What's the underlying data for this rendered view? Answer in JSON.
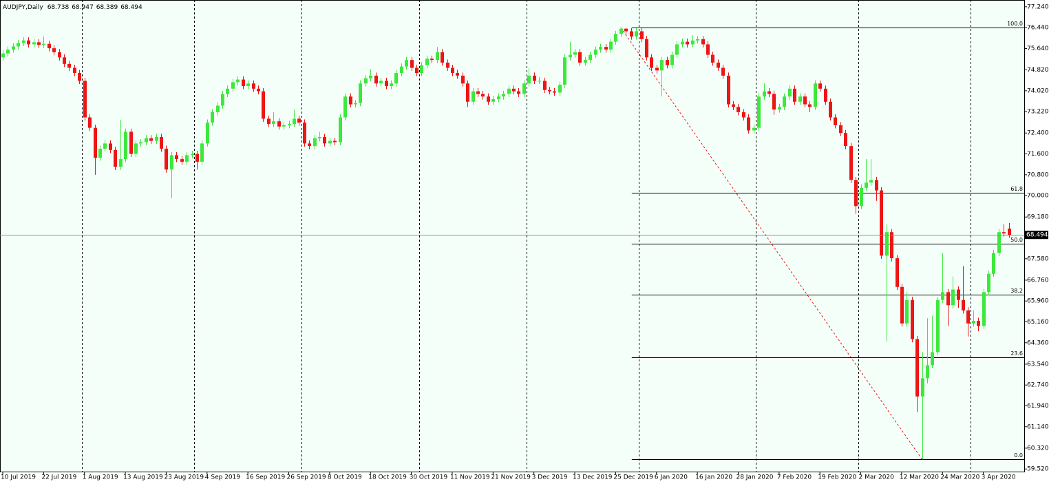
{
  "chart_data": {
    "type": "candlestick",
    "title": "AUDJPY,Daily",
    "header_ohlc": [
      68.738,
      68.947,
      68.389,
      68.494
    ],
    "up_color": "#3de83d",
    "down_color": "#ee1515",
    "background": "#f5fffa",
    "ylim": [
      59.42,
      77.5
    ],
    "yticks": [
      {
        "value": 77.24,
        "label": "77.240"
      },
      {
        "value": 76.44,
        "label": "76.440"
      },
      {
        "value": 75.64,
        "label": "75.640"
      },
      {
        "value": 74.82,
        "label": "74.820"
      },
      {
        "value": 74.02,
        "label": "74.020"
      },
      {
        "value": 73.22,
        "label": "73.220"
      },
      {
        "value": 72.4,
        "label": "72.400"
      },
      {
        "value": 71.6,
        "label": "71.600"
      },
      {
        "value": 70.8,
        "label": "70.800"
      },
      {
        "value": 70,
        "label": "70.000"
      },
      {
        "value": 69.18,
        "label": "69.180"
      },
      {
        "value": 67.58,
        "label": "67.580"
      },
      {
        "value": 66.76,
        "label": "66.760"
      },
      {
        "value": 65.96,
        "label": "65.960"
      },
      {
        "value": 65.16,
        "label": "65.160"
      },
      {
        "value": 64.36,
        "label": "64.360"
      },
      {
        "value": 63.54,
        "label": "63.540"
      },
      {
        "value": 62.74,
        "label": "62.740"
      },
      {
        "value": 61.94,
        "label": "61.940"
      },
      {
        "value": 61.14,
        "label": "61.140"
      },
      {
        "value": 60.32,
        "label": "60.320"
      },
      {
        "value": 59.52,
        "label": "59.520"
      }
    ],
    "last_price": 68.494,
    "fibo": {
      "high": 76.44,
      "low": 59.89,
      "color": "#000000",
      "trend_color": "#ee1515",
      "levels": [
        {
          "value": 100,
          "label": "100.0"
        },
        {
          "value": 61.8,
          "label": "61.8"
        },
        {
          "value": 50,
          "label": "50.0"
        },
        {
          "value": 38.2,
          "label": "38.2"
        },
        {
          "value": 23.6,
          "label": "23.6"
        },
        {
          "value": 0,
          "label": "0.0"
        }
      ]
    },
    "categories": [
      "10 Jul 2019",
      null,
      null,
      null,
      null,
      null,
      null,
      null,
      "22 Jul 2019",
      null,
      null,
      null,
      null,
      null,
      null,
      null,
      "1 Aug 2019",
      null,
      null,
      null,
      null,
      null,
      null,
      null,
      "13 Aug 2019",
      null,
      null,
      null,
      null,
      null,
      null,
      null,
      "23 Aug 2019",
      null,
      null,
      null,
      null,
      null,
      null,
      null,
      "4 Sep 2019",
      null,
      null,
      null,
      null,
      null,
      null,
      null,
      "16 Sep 2019",
      null,
      null,
      null,
      null,
      null,
      null,
      null,
      "26 Sep 2019",
      null,
      null,
      null,
      null,
      null,
      null,
      null,
      "8 Oct 2019",
      null,
      null,
      null,
      null,
      null,
      null,
      null,
      "18 Oct 2019",
      null,
      null,
      null,
      null,
      null,
      null,
      null,
      "30 Oct 2019",
      null,
      null,
      null,
      null,
      null,
      null,
      null,
      "11 Nov 2019",
      null,
      null,
      null,
      null,
      null,
      null,
      null,
      "21 Nov 2019",
      null,
      null,
      null,
      null,
      null,
      null,
      null,
      "3 Dec 2019",
      null,
      null,
      null,
      null,
      null,
      null,
      null,
      "13 Dec 2019",
      null,
      null,
      null,
      null,
      null,
      null,
      null,
      "25 Dec 2019",
      null,
      null,
      null,
      null,
      null,
      null,
      null,
      "6 Jan 2020",
      null,
      null,
      null,
      null,
      null,
      null,
      null,
      "16 Jan 2020",
      null,
      null,
      null,
      null,
      null,
      null,
      null,
      "28 Jan 2020",
      null,
      null,
      null,
      null,
      null,
      null,
      null,
      "7 Feb 2020",
      null,
      null,
      null,
      null,
      null,
      null,
      null,
      "19 Feb 2020",
      null,
      null,
      null,
      null,
      null,
      null,
      null,
      "2 Mar 2020",
      null,
      null,
      null,
      null,
      null,
      null,
      null,
      "12 Mar 2020",
      null,
      null,
      null,
      null,
      null,
      null,
      null,
      "24 Mar 2020",
      null,
      null,
      null,
      null,
      null,
      null,
      null,
      "3 Apr 2020",
      null,
      null,
      null,
      null,
      null
    ],
    "candles": [
      [
        75.3,
        75.57,
        75.18,
        75.45
      ],
      [
        75.45,
        75.72,
        75.33,
        75.6
      ],
      [
        75.6,
        75.84,
        75.48,
        75.72
      ],
      [
        75.72,
        75.97,
        75.6,
        75.85
      ],
      [
        75.85,
        76.07,
        75.73,
        75.95
      ],
      [
        75.95,
        76.07,
        75.68,
        75.8
      ],
      [
        75.8,
        76.0,
        75.68,
        75.88
      ],
      [
        75.88,
        76.0,
        75.66,
        75.78
      ],
      [
        75.78,
        76.1,
        75.66,
        75.82
      ],
      [
        75.82,
        75.94,
        75.53,
        75.65
      ],
      [
        75.65,
        75.77,
        75.38,
        75.5
      ],
      [
        75.5,
        75.62,
        75.18,
        75.3
      ],
      [
        75.3,
        75.42,
        74.93,
        75.05
      ],
      [
        75.05,
        75.17,
        74.78,
        74.9
      ],
      [
        74.9,
        75.02,
        74.58,
        74.7
      ],
      [
        74.7,
        74.82,
        74.28,
        74.4
      ],
      [
        74.4,
        74.52,
        72.88,
        73.0
      ],
      [
        73.0,
        73.12,
        72.48,
        72.6
      ],
      [
        72.6,
        72.72,
        70.8,
        71.45
      ],
      [
        71.45,
        71.92,
        71.33,
        71.8
      ],
      [
        71.8,
        72.12,
        71.68,
        72.0
      ],
      [
        72.0,
        72.12,
        71.63,
        71.75
      ],
      [
        71.75,
        71.87,
        70.98,
        71.1
      ],
      [
        71.1,
        72.9,
        70.98,
        71.4
      ],
      [
        71.4,
        72.57,
        71.28,
        72.45
      ],
      [
        72.45,
        72.57,
        71.48,
        71.6
      ],
      [
        71.6,
        72.12,
        71.48,
        72.0
      ],
      [
        72.0,
        72.17,
        71.88,
        72.05
      ],
      [
        72.05,
        72.32,
        71.93,
        72.2
      ],
      [
        72.2,
        72.32,
        71.98,
        72.1
      ],
      [
        72.1,
        72.37,
        71.98,
        72.25
      ],
      [
        72.25,
        72.37,
        71.68,
        71.8
      ],
      [
        71.8,
        71.92,
        70.88,
        71.0
      ],
      [
        71.0,
        71.67,
        69.9,
        71.55
      ],
      [
        71.55,
        71.67,
        71.28,
        71.4
      ],
      [
        71.4,
        71.52,
        71.18,
        71.3
      ],
      [
        71.3,
        71.67,
        71.18,
        71.55
      ],
      [
        71.55,
        71.72,
        71.43,
        71.6
      ],
      [
        71.6,
        71.72,
        71.0,
        71.3
      ],
      [
        71.3,
        72.12,
        71.18,
        72.0
      ],
      [
        72.0,
        72.92,
        71.88,
        72.8
      ],
      [
        72.8,
        73.32,
        72.68,
        73.2
      ],
      [
        73.2,
        73.57,
        73.08,
        73.45
      ],
      [
        73.45,
        74.02,
        73.33,
        73.9
      ],
      [
        73.9,
        74.22,
        73.78,
        74.1
      ],
      [
        74.1,
        74.47,
        73.98,
        74.35
      ],
      [
        74.35,
        74.57,
        74.23,
        74.45
      ],
      [
        74.45,
        74.57,
        74.08,
        74.2
      ],
      [
        74.2,
        74.42,
        74.08,
        74.3
      ],
      [
        74.3,
        74.42,
        73.98,
        74.1
      ],
      [
        74.1,
        74.22,
        73.88,
        74.0
      ],
      [
        74.0,
        74.12,
        72.83,
        72.95
      ],
      [
        72.95,
        73.07,
        72.63,
        72.75
      ],
      [
        72.75,
        73.2,
        72.63,
        72.85
      ],
      [
        72.85,
        72.97,
        72.53,
        72.65
      ],
      [
        72.65,
        72.82,
        72.53,
        72.7
      ],
      [
        72.7,
        72.87,
        72.58,
        72.75
      ],
      [
        72.75,
        73.3,
        72.63,
        72.95
      ],
      [
        72.95,
        73.07,
        72.68,
        72.8
      ],
      [
        72.8,
        72.92,
        71.88,
        72.0
      ],
      [
        72.0,
        72.12,
        71.78,
        71.9
      ],
      [
        71.9,
        72.32,
        71.78,
        72.2
      ],
      [
        72.2,
        72.45,
        72.08,
        72.25
      ],
      [
        72.25,
        72.37,
        71.88,
        72.0
      ],
      [
        72.0,
        72.22,
        71.88,
        72.1
      ],
      [
        72.1,
        72.22,
        71.93,
        72.05
      ],
      [
        72.05,
        73.12,
        71.93,
        73.0
      ],
      [
        73.0,
        73.92,
        72.88,
        73.8
      ],
      [
        73.8,
        73.92,
        73.38,
        73.5
      ],
      [
        73.5,
        73.67,
        73.38,
        73.55
      ],
      [
        73.55,
        74.42,
        73.43,
        74.3
      ],
      [
        74.3,
        74.62,
        74.18,
        74.5
      ],
      [
        74.5,
        74.85,
        74.38,
        74.6
      ],
      [
        74.6,
        74.72,
        74.18,
        74.3
      ],
      [
        74.3,
        74.52,
        74.18,
        74.4
      ],
      [
        74.4,
        74.52,
        74.08,
        74.2
      ],
      [
        74.2,
        74.42,
        74.08,
        74.3
      ],
      [
        74.3,
        74.82,
        74.18,
        74.7
      ],
      [
        74.7,
        75.07,
        74.58,
        74.95
      ],
      [
        74.95,
        75.32,
        74.83,
        75.2
      ],
      [
        75.2,
        75.32,
        74.78,
        74.9
      ],
      [
        74.9,
        75.02,
        74.58,
        74.7
      ],
      [
        74.7,
        75.12,
        74.58,
        75.0
      ],
      [
        75.0,
        75.37,
        74.88,
        75.25
      ],
      [
        75.25,
        75.37,
        75.08,
        75.2
      ],
      [
        75.2,
        75.7,
        75.08,
        75.5
      ],
      [
        75.5,
        75.62,
        74.98,
        75.1
      ],
      [
        75.1,
        75.22,
        74.78,
        74.9
      ],
      [
        74.9,
        75.02,
        74.58,
        74.7
      ],
      [
        74.7,
        74.82,
        74.48,
        74.6
      ],
      [
        74.6,
        74.72,
        74.18,
        74.3
      ],
      [
        74.3,
        74.42,
        73.4,
        73.6
      ],
      [
        73.6,
        74.12,
        73.48,
        74.0
      ],
      [
        74.0,
        74.12,
        73.78,
        73.9
      ],
      [
        73.9,
        74.02,
        73.68,
        73.8
      ],
      [
        73.8,
        73.92,
        73.48,
        73.6
      ],
      [
        73.6,
        73.82,
        73.48,
        73.7
      ],
      [
        73.7,
        73.92,
        73.58,
        73.8
      ],
      [
        73.8,
        74.02,
        73.68,
        73.9
      ],
      [
        73.9,
        74.22,
        73.78,
        74.1
      ],
      [
        74.1,
        74.22,
        73.88,
        74.0
      ],
      [
        74.0,
        74.12,
        73.78,
        73.9
      ],
      [
        73.9,
        74.42,
        73.78,
        74.3
      ],
      [
        74.3,
        74.9,
        74.18,
        74.6
      ],
      [
        74.6,
        74.72,
        74.28,
        74.4
      ],
      [
        74.4,
        74.55,
        74.28,
        74.4
      ],
      [
        74.4,
        74.52,
        73.93,
        74.05
      ],
      [
        74.05,
        74.17,
        73.88,
        74.0
      ],
      [
        74.0,
        74.12,
        73.83,
        73.95
      ],
      [
        73.95,
        74.37,
        73.83,
        74.25
      ],
      [
        74.25,
        75.42,
        74.13,
        75.3
      ],
      [
        75.3,
        75.9,
        75.18,
        75.4
      ],
      [
        75.4,
        75.62,
        75.28,
        75.5
      ],
      [
        75.5,
        75.62,
        74.98,
        75.1
      ],
      [
        75.1,
        75.32,
        74.98,
        75.2
      ],
      [
        75.2,
        75.52,
        75.08,
        75.4
      ],
      [
        75.4,
        75.72,
        75.28,
        75.6
      ],
      [
        75.6,
        75.82,
        75.48,
        75.7
      ],
      [
        75.7,
        75.82,
        75.48,
        75.6
      ],
      [
        75.6,
        76.02,
        75.48,
        75.9
      ],
      [
        75.9,
        76.32,
        75.78,
        76.2
      ],
      [
        76.2,
        76.44,
        76.08,
        76.4
      ],
      [
        76.4,
        76.42,
        76.18,
        76.3
      ],
      [
        76.3,
        76.42,
        75.98,
        76.1
      ],
      [
        76.1,
        76.42,
        75.98,
        76.3
      ],
      [
        76.3,
        76.42,
        75.88,
        76.0
      ],
      [
        76.0,
        76.12,
        75.18,
        75.3
      ],
      [
        75.3,
        75.42,
        74.78,
        74.9
      ],
      [
        74.9,
        75.02,
        74.68,
        74.8
      ],
      [
        74.8,
        75.32,
        73.8,
        75.2
      ],
      [
        75.2,
        75.32,
        74.88,
        75.0
      ],
      [
        75.0,
        75.52,
        74.88,
        75.4
      ],
      [
        75.4,
        75.92,
        75.28,
        75.8
      ],
      [
        75.8,
        76.02,
        75.68,
        75.9
      ],
      [
        75.9,
        76.02,
        75.68,
        75.8
      ],
      [
        75.8,
        76.15,
        75.68,
        75.95
      ],
      [
        75.95,
        76.12,
        75.83,
        76.0
      ],
      [
        76.0,
        76.12,
        75.68,
        75.8
      ],
      [
        75.8,
        75.92,
        75.28,
        75.4
      ],
      [
        75.4,
        75.52,
        74.98,
        75.1
      ],
      [
        75.1,
        75.22,
        74.78,
        74.9
      ],
      [
        74.9,
        75.02,
        74.48,
        74.6
      ],
      [
        74.6,
        74.72,
        73.38,
        73.5
      ],
      [
        73.5,
        73.62,
        73.28,
        73.4
      ],
      [
        73.4,
        73.52,
        73.08,
        73.2
      ],
      [
        73.2,
        73.32,
        72.88,
        73.0
      ],
      [
        73.0,
        73.12,
        72.38,
        72.5
      ],
      [
        72.5,
        72.72,
        72.38,
        72.6
      ],
      [
        72.6,
        73.92,
        72.48,
        73.8
      ],
      [
        73.8,
        74.3,
        73.68,
        74.0
      ],
      [
        74.0,
        74.12,
        73.78,
        73.9
      ],
      [
        73.9,
        74.02,
        73.1,
        73.3
      ],
      [
        73.3,
        73.52,
        73.18,
        73.4
      ],
      [
        73.4,
        73.92,
        73.28,
        73.8
      ],
      [
        73.8,
        74.22,
        73.68,
        74.1
      ],
      [
        74.1,
        74.22,
        73.48,
        73.6
      ],
      [
        73.6,
        73.92,
        73.48,
        73.8
      ],
      [
        73.8,
        73.92,
        73.38,
        73.5
      ],
      [
        73.5,
        73.62,
        73.2,
        73.4
      ],
      [
        73.4,
        74.42,
        73.28,
        74.3
      ],
      [
        74.3,
        74.42,
        73.98,
        74.1
      ],
      [
        74.1,
        74.22,
        73.48,
        73.6
      ],
      [
        73.6,
        73.72,
        72.88,
        73.0
      ],
      [
        73.0,
        73.12,
        72.58,
        72.7
      ],
      [
        72.7,
        72.82,
        72.28,
        72.4
      ],
      [
        72.4,
        72.52,
        71.78,
        71.9
      ],
      [
        71.9,
        72.02,
        70.48,
        70.6
      ],
      [
        70.6,
        70.72,
        69.3,
        69.6
      ],
      [
        69.6,
        70.42,
        69.48,
        70.3
      ],
      [
        70.3,
        71.4,
        70.18,
        70.5
      ],
      [
        70.5,
        71.4,
        70.38,
        70.6
      ],
      [
        70.6,
        70.72,
        69.8,
        70.2
      ],
      [
        70.2,
        70.32,
        67.58,
        67.7
      ],
      [
        67.7,
        68.9,
        64.4,
        68.6
      ],
      [
        68.6,
        68.72,
        67.48,
        67.6
      ],
      [
        67.6,
        67.72,
        66.38,
        66.5
      ],
      [
        66.5,
        66.62,
        64.98,
        65.1
      ],
      [
        65.1,
        66.3,
        64.98,
        66.0
      ],
      [
        66.0,
        66.12,
        64.38,
        64.5
      ],
      [
        64.5,
        64.62,
        61.7,
        62.3
      ],
      [
        62.3,
        64.0,
        59.89,
        63.0
      ],
      [
        63.0,
        65.3,
        62.8,
        63.5
      ],
      [
        63.5,
        65.4,
        63.38,
        64.0
      ],
      [
        64.0,
        66.12,
        63.88,
        66.0
      ],
      [
        66.0,
        67.8,
        65.88,
        66.3
      ],
      [
        66.3,
        66.42,
        65.0,
        65.8
      ],
      [
        65.8,
        66.9,
        65.68,
        66.4
      ],
      [
        66.4,
        66.52,
        65.7,
        66.0
      ],
      [
        66.0,
        67.3,
        65.48,
        65.6
      ],
      [
        65.6,
        65.72,
        64.6,
        65.1
      ],
      [
        65.1,
        65.6,
        64.98,
        65.2
      ],
      [
        65.2,
        65.32,
        64.8,
        65.0
      ],
      [
        65.0,
        66.42,
        64.88,
        66.3
      ],
      [
        66.3,
        67.12,
        66.18,
        67.0
      ],
      [
        67.0,
        67.92,
        66.88,
        67.8
      ],
      [
        67.8,
        68.72,
        67.68,
        68.6
      ],
      [
        68.6,
        68.9,
        68.43,
        68.55
      ],
      [
        68.738,
        68.947,
        68.389,
        68.494
      ]
    ]
  }
}
